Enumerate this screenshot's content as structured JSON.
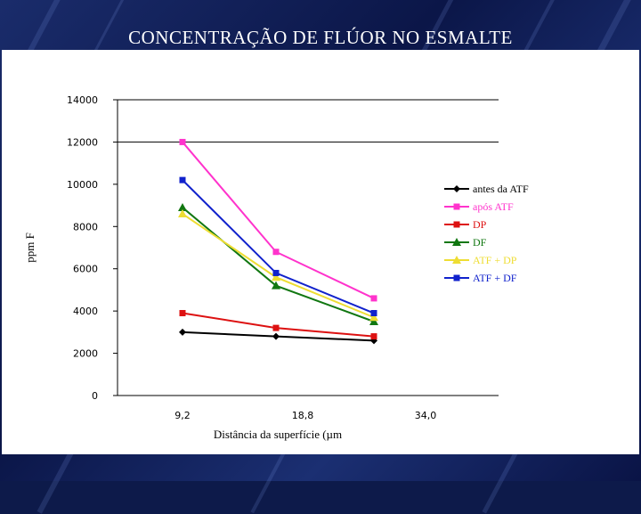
{
  "slide": {
    "title": "CONCENTRAÇÃO DE FLÚOR NO ESMALTE"
  },
  "chart_data": {
    "type": "line",
    "title": "",
    "xlabel": "Distância da superfície (µm",
    "ylabel": "ppm F",
    "x_tick_labels": [
      "9,2",
      "18,8",
      "34,0"
    ],
    "y_ticks": [
      0,
      2000,
      4000,
      6000,
      8000,
      10000,
      12000,
      14000
    ],
    "ylim": [
      0,
      14000
    ],
    "grid": "horizontal at 14000 and 12000",
    "legend_position": "right",
    "series": [
      {
        "name": "antes da ATF",
        "color": "#000000",
        "marker": "diamond",
        "values": [
          3000,
          2800,
          2600
        ]
      },
      {
        "name": "após ATF",
        "color": "#ff33cc",
        "marker": "square",
        "values": [
          12000,
          6800,
          4600
        ]
      },
      {
        "name": "DP",
        "color": "#dd1111",
        "marker": "square",
        "values": [
          3900,
          3200,
          2800
        ]
      },
      {
        "name": "DF",
        "color": "#117711",
        "marker": "triangle",
        "values": [
          8900,
          5200,
          3500
        ]
      },
      {
        "name": "ATF + DP",
        "color": "#eedd33",
        "marker": "triangle",
        "values": [
          8600,
          5600,
          3700
        ]
      },
      {
        "name": "ATF + DF",
        "color": "#1122cc",
        "marker": "square",
        "values": [
          10200,
          5800,
          3900
        ]
      }
    ]
  }
}
